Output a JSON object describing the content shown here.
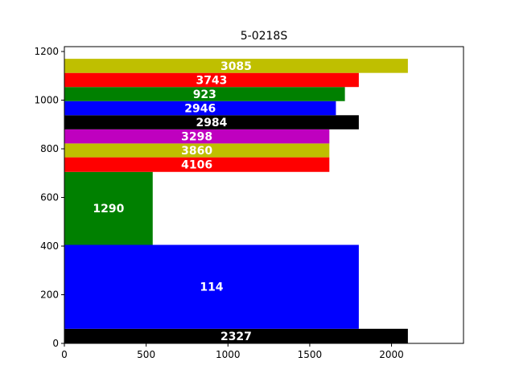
{
  "chart_data": {
    "type": "bar",
    "orientation": "horizontal-span",
    "title": "5-0218S",
    "xlabel": "",
    "ylabel": "",
    "xlim": [
      0,
      2440
    ],
    "ylim": [
      0,
      1220
    ],
    "x_ticks": [
      "0",
      "500",
      "1000",
      "1500",
      "2000"
    ],
    "y_ticks": [
      "0",
      "200",
      "400",
      "600",
      "800",
      "1000",
      "1200"
    ],
    "grid": false,
    "bars": [
      {
        "label": "2327",
        "y_start": 0,
        "y_end": 60,
        "x_end": 2100,
        "color": "#000000"
      },
      {
        "label": "114",
        "y_start": 60,
        "y_end": 405,
        "x_end": 1800,
        "color": "#0000ff"
      },
      {
        "label": "1290",
        "y_start": 405,
        "y_end": 705,
        "x_end": 540,
        "color": "#008000"
      },
      {
        "label": "4106",
        "y_start": 705,
        "y_end": 765,
        "x_end": 1620,
        "color": "#ff0000"
      },
      {
        "label": "3860",
        "y_start": 765,
        "y_end": 822,
        "x_end": 1620,
        "color": "#bfbf00"
      },
      {
        "label": "3298",
        "y_start": 822,
        "y_end": 880,
        "x_end": 1620,
        "color": "#bf00bf"
      },
      {
        "label": "2984",
        "y_start": 880,
        "y_end": 938,
        "x_end": 1800,
        "color": "#000000"
      },
      {
        "label": "2946",
        "y_start": 938,
        "y_end": 996,
        "x_end": 1660,
        "color": "#0000ff"
      },
      {
        "label": "923",
        "y_start": 996,
        "y_end": 1054,
        "x_end": 1715,
        "color": "#008000"
      },
      {
        "label": "3743",
        "y_start": 1054,
        "y_end": 1112,
        "x_end": 1800,
        "color": "#ff0000"
      },
      {
        "label": "3085",
        "y_start": 1112,
        "y_end": 1170,
        "x_end": 2100,
        "color": "#bfbf00"
      }
    ]
  }
}
